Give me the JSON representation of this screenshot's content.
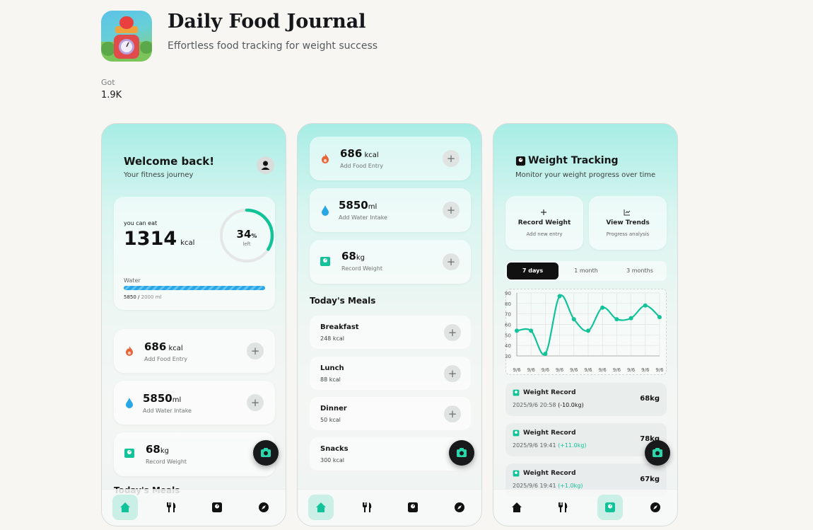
{
  "app": {
    "title": "Daily Food Journal",
    "subtitle": "Effortless food tracking for weight success",
    "got_label": "Got",
    "got_value": "1.9K"
  },
  "colors": {
    "accent": "#12c39a",
    "water": "#29a6e6",
    "fire": "#e9633a",
    "dark": "#18191b"
  },
  "screen1": {
    "welcome": "Welcome back!",
    "subtitle": "Your fitness journey",
    "summary": {
      "label": "you can eat",
      "kcal": "1314",
      "kcal_unit": "kcal",
      "percent": "34",
      "percent_sign": "%",
      "percent_label": "left",
      "percent_fraction": 0.34,
      "water_label": "Water",
      "water_current": "5850",
      "water_sep": " / ",
      "water_target": "2000 ml"
    },
    "metrics": [
      {
        "value": "686",
        "unit": " kcal",
        "label": "Add Food Entry",
        "icon": "fire-icon"
      },
      {
        "value": "5850",
        "unit": "ml",
        "label": "Add Water Intake",
        "icon": "water-drop-icon"
      },
      {
        "value": "68",
        "unit": "kg",
        "label": "Record Weight",
        "icon": "scale-icon"
      }
    ],
    "meals_heading_partial": "Today's Meals"
  },
  "screen2": {
    "metrics": [
      {
        "value": "686",
        "unit": " kcal",
        "label": "Add Food Entry"
      },
      {
        "value": "5850",
        "unit": "ml",
        "label": "Add Water Intake"
      },
      {
        "value": "68",
        "unit": "kg",
        "label": "Record Weight"
      }
    ],
    "meals_heading": "Today's Meals",
    "meals": [
      {
        "name": "Breakfast",
        "kcal": "248 kcal"
      },
      {
        "name": "Lunch",
        "kcal": "88 kcal"
      },
      {
        "name": "Dinner",
        "kcal": "50 kcal"
      },
      {
        "name": "Snacks",
        "kcal": "300 kcal"
      }
    ]
  },
  "screen3": {
    "title": "Weight Tracking",
    "subtitle": "Monitor your weight progress over time",
    "actions": [
      {
        "title": "Record Weight",
        "sub": "Add new entry",
        "icon": "plus-icon"
      },
      {
        "title": "View Trends",
        "sub": "Progress analysis",
        "icon": "chart-icon"
      }
    ],
    "ranges": [
      "7 days",
      "1 month",
      "3 months"
    ],
    "selected_range": "7 days",
    "records": [
      {
        "title": "Weight Record",
        "date": "2025/9/6 20:58",
        "delta": "(-10.0kg)",
        "value": "68kg"
      },
      {
        "title": "Weight Record",
        "date": "2025/9/6 19:41",
        "delta": "(+11.0kg)",
        "value": "78kg"
      },
      {
        "title": "Weight Record",
        "date": "2025/9/6 19:41",
        "delta": "(+1.0kg)",
        "value": "67kg"
      }
    ]
  },
  "chart_data": {
    "type": "line",
    "x": [
      "9/6",
      "9/6",
      "9/6",
      "9/6",
      "9/6",
      "9/6",
      "9/6",
      "9/6",
      "9/6",
      "9/6",
      "9/6"
    ],
    "series": [
      {
        "values": [
          54,
          54,
          32,
          87,
          65,
          54,
          76,
          65,
          66,
          78,
          67
        ]
      }
    ],
    "yticks": [
      "90",
      "80",
      "70",
      "60",
      "50",
      "40",
      "30"
    ],
    "ylim": [
      30,
      90
    ],
    "grid": true,
    "color": "#12c39a"
  },
  "nav": {
    "tabs": [
      "home-icon",
      "utensils-icon",
      "scale-icon",
      "compass-icon"
    ]
  }
}
